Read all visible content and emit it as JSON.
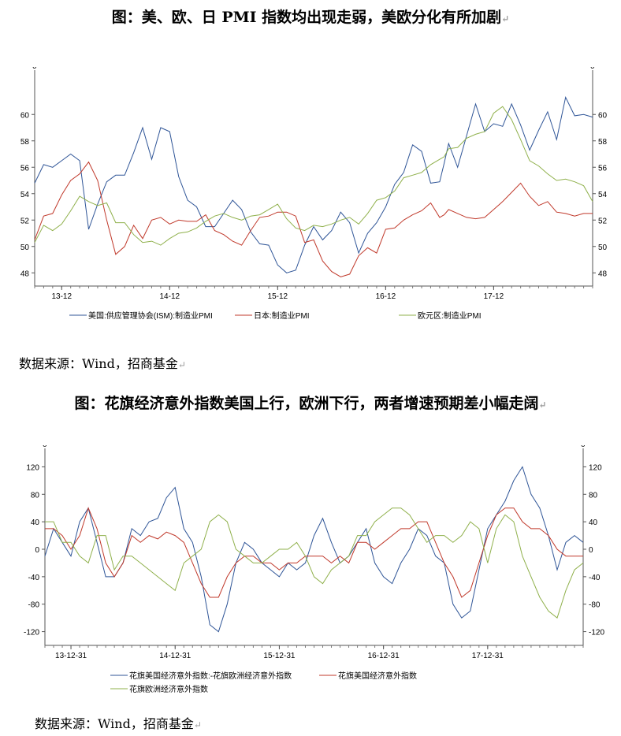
{
  "titles": {
    "chart1": "图：美、欧、日 PMI 指数均出现走弱，美欧分化有所加剧",
    "chart2": "图：花旗经济意外指数美国上行，欧洲下行，两者增速预期差小幅走阔"
  },
  "sources": {
    "chart1": "数据来源：Wind，招商基金",
    "chart2": "数据来源：Wind，招商基金"
  },
  "return_mark": "↵",
  "chart_data": [
    {
      "type": "line",
      "title": "",
      "corner_label": "0",
      "ylim": [
        47,
        63
      ],
      "yticks": [
        48,
        50,
        52,
        54,
        56,
        58,
        60
      ],
      "xticks": [
        "13-12",
        "14-12",
        "15-12",
        "16-12",
        "17-12"
      ],
      "xtick_positions": [
        3,
        15,
        27,
        39,
        51
      ],
      "x": [
        0,
        1,
        2,
        3,
        4,
        5,
        6,
        7,
        8,
        9,
        10,
        11,
        12,
        13,
        14,
        15,
        16,
        17,
        18,
        19,
        20,
        21,
        22,
        23,
        24,
        25,
        26,
        27,
        28,
        29,
        30,
        31,
        32,
        33,
        34,
        35,
        36,
        37,
        38,
        39,
        40,
        41,
        42,
        43,
        44,
        45,
        45.5,
        46,
        47,
        48,
        49,
        50,
        51,
        52,
        53,
        54,
        55,
        56,
        57,
        58,
        59,
        60,
        61,
        62
      ],
      "legend_position": "bottom",
      "grid": false,
      "colors": [
        "#2f5597",
        "#c0392b",
        "#8fb04b"
      ],
      "series": [
        {
          "name": "美国:供应管理协会(ISM):制造业PMI",
          "values": [
            54.8,
            56.2,
            56.0,
            56.5,
            57.0,
            56.5,
            51.3,
            53.2,
            54.9,
            55.4,
            55.4,
            57.1,
            59.0,
            56.6,
            59.0,
            58.7,
            55.3,
            53.5,
            53.0,
            51.5,
            51.5,
            52.5,
            53.5,
            52.8,
            51.1,
            50.2,
            50.1,
            48.6,
            48.0,
            48.2,
            50.1,
            51.5,
            50.5,
            51.2,
            52.6,
            51.8,
            49.5,
            51.0,
            51.8,
            53.0,
            54.7,
            55.6,
            57.7,
            57.2,
            54.8,
            54.9,
            56.3,
            57.8,
            56.0,
            58.4,
            60.8,
            58.7,
            59.3,
            59.1,
            60.8,
            59.2,
            57.3,
            58.8,
            60.2,
            58.1,
            61.3,
            59.9,
            60.0,
            59.8
          ]
        },
        {
          "name": "日本:制造业PMI",
          "values": [
            50.5,
            52.3,
            52.5,
            53.9,
            55.0,
            55.5,
            56.4,
            55.0,
            52.0,
            49.4,
            50.0,
            51.6,
            50.6,
            52.0,
            52.2,
            51.7,
            52.0,
            51.9,
            51.9,
            52.4,
            51.2,
            50.9,
            50.4,
            50.1,
            51.2,
            52.2,
            52.3,
            52.6,
            52.6,
            52.3,
            50.3,
            50.5,
            48.9,
            48.1,
            47.7,
            47.9,
            49.3,
            49.9,
            49.5,
            51.3,
            51.4,
            52.0,
            52.4,
            52.7,
            53.3,
            52.2,
            52.4,
            52.8,
            52.5,
            52.2,
            52.1,
            52.2,
            52.8,
            53.4,
            54.1,
            54.8,
            53.8,
            53.1,
            53.4,
            52.6,
            52.5,
            52.3,
            52.5,
            52.5
          ]
        },
        {
          "name": "欧元区:制造业PMI",
          "values": [
            50.3,
            51.6,
            51.2,
            51.7,
            52.7,
            53.8,
            53.4,
            53.1,
            53.3,
            51.8,
            51.8,
            50.9,
            50.3,
            50.4,
            50.1,
            50.6,
            51.0,
            51.1,
            51.4,
            51.9,
            52.3,
            52.5,
            52.2,
            52.0,
            52.3,
            52.4,
            52.8,
            53.2,
            52.1,
            51.4,
            51.2,
            51.6,
            51.5,
            51.7,
            52.0,
            52.2,
            51.7,
            52.5,
            53.5,
            53.7,
            54.2,
            55.2,
            55.4,
            55.6,
            56.2,
            56.6,
            56.8,
            57.4,
            57.5,
            58.2,
            58.5,
            58.7,
            60.1,
            60.6,
            59.6,
            58.1,
            56.5,
            56.1,
            55.5,
            55.0,
            55.1,
            54.9,
            54.6,
            53.4
          ]
        }
      ]
    },
    {
      "type": "line",
      "title": "",
      "corner_label": "0",
      "ylim": [
        -140,
        140
      ],
      "yticks": [
        -120,
        -80,
        -40,
        0,
        40,
        80,
        120
      ],
      "xticks": [
        "13-12-31",
        "14-12-31",
        "15-12-31",
        "16-12-31",
        "17-12-31"
      ],
      "xtick_positions": [
        3,
        15,
        27,
        39,
        51
      ],
      "x": [
        0,
        1,
        2,
        3,
        4,
        5,
        6,
        7,
        8,
        9,
        10,
        11,
        12,
        13,
        14,
        15,
        16,
        17,
        18,
        19,
        20,
        21,
        22,
        23,
        24,
        25,
        26,
        27,
        28,
        29,
        30,
        31,
        32,
        33,
        34,
        35,
        36,
        37,
        38,
        39,
        40,
        41,
        42,
        43,
        44,
        45,
        46,
        47,
        48,
        49,
        50,
        51,
        52,
        53,
        54,
        55,
        56,
        57,
        58,
        59,
        60,
        61,
        62
      ],
      "legend_position": "bottom",
      "grid": false,
      "colors": [
        "#2f5597",
        "#c0392b",
        "#8fb04b"
      ],
      "series": [
        {
          "name": "花旗美国经济意外指数:-花旗欧洲经济意外指数",
          "values": [
            -10,
            30,
            10,
            -10,
            40,
            60,
            10,
            -40,
            -40,
            -20,
            30,
            20,
            40,
            45,
            75,
            90,
            30,
            10,
            -40,
            -110,
            -120,
            -80,
            -20,
            10,
            0,
            -20,
            -30,
            -40,
            -20,
            -30,
            -20,
            20,
            45,
            10,
            -20,
            -10,
            10,
            30,
            -20,
            -40,
            -50,
            -20,
            0,
            30,
            20,
            -10,
            -20,
            -80,
            -100,
            -90,
            -30,
            30,
            50,
            70,
            100,
            120,
            80,
            60,
            20,
            -30,
            10,
            20,
            10
          ]
        },
        {
          "name": "花旗美国经济意外指数",
          "values": [
            30,
            30,
            20,
            0,
            20,
            60,
            30,
            -20,
            -40,
            -20,
            20,
            10,
            20,
            15,
            25,
            20,
            10,
            -20,
            -50,
            -70,
            -70,
            -40,
            -20,
            -10,
            -10,
            -20,
            -20,
            -30,
            -20,
            -20,
            -10,
            -10,
            -10,
            -20,
            -10,
            -20,
            10,
            10,
            0,
            10,
            20,
            30,
            30,
            40,
            40,
            10,
            -20,
            -40,
            -70,
            -60,
            -20,
            20,
            50,
            60,
            60,
            40,
            30,
            30,
            20,
            0,
            -10,
            -10,
            -10
          ]
        },
        {
          "name": "花旗欧洲经济意外指数",
          "values": [
            40,
            40,
            10,
            10,
            -10,
            -20,
            20,
            20,
            -30,
            -10,
            -10,
            -20,
            -30,
            -40,
            -50,
            -60,
            -20,
            -10,
            0,
            40,
            50,
            40,
            0,
            -10,
            -20,
            -20,
            -10,
            0,
            0,
            10,
            -10,
            -40,
            -50,
            -30,
            -20,
            -10,
            20,
            20,
            40,
            50,
            60,
            60,
            50,
            30,
            10,
            20,
            20,
            10,
            20,
            40,
            30,
            -20,
            30,
            50,
            40,
            -10,
            -40,
            -70,
            -90,
            -100,
            -60,
            -30,
            -20
          ]
        }
      ]
    }
  ]
}
